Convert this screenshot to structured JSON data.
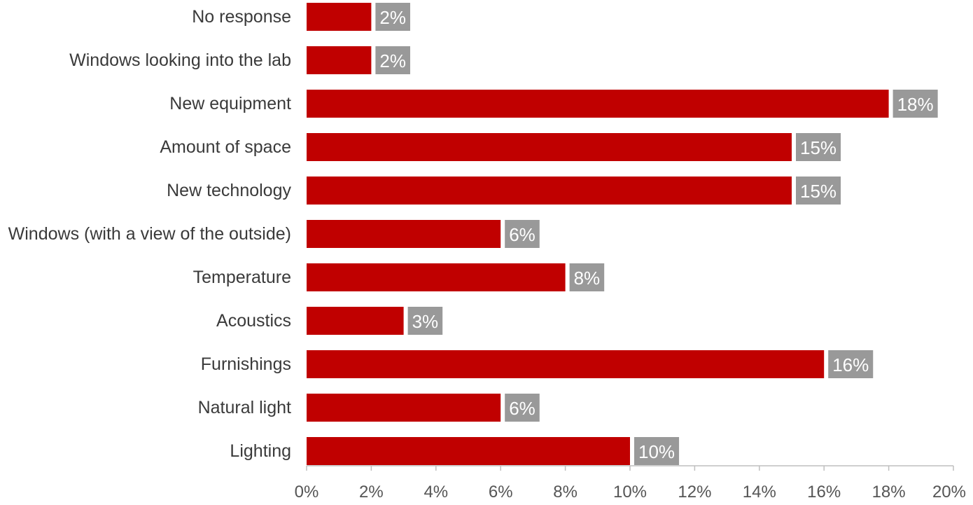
{
  "chart_data": {
    "type": "bar",
    "orientation": "horizontal",
    "categories": [
      "No response",
      "Windows looking into the lab",
      "New equipment",
      "Amount of space",
      "New technology",
      "Windows (with a view of the outside)",
      "Temperature",
      "Acoustics",
      "Furnishings",
      "Natural light",
      "Lighting"
    ],
    "values": [
      2,
      2,
      18,
      15,
      15,
      6,
      8,
      3,
      16,
      6,
      10
    ],
    "data_labels": [
      "2%",
      "2%",
      "18%",
      "15%",
      "15%",
      "6%",
      "8%",
      "3%",
      "16%",
      "6%",
      "10%"
    ],
    "x_ticks": [
      "0%",
      "2%",
      "4%",
      "6%",
      "8%",
      "10%",
      "12%",
      "14%",
      "16%",
      "18%",
      "20%"
    ],
    "xlim": [
      0,
      20
    ],
    "grid": false,
    "legend": false
  },
  "colors": {
    "bar": "#c00000",
    "label_box": "#999999",
    "axis": "#bfbfbf"
  }
}
